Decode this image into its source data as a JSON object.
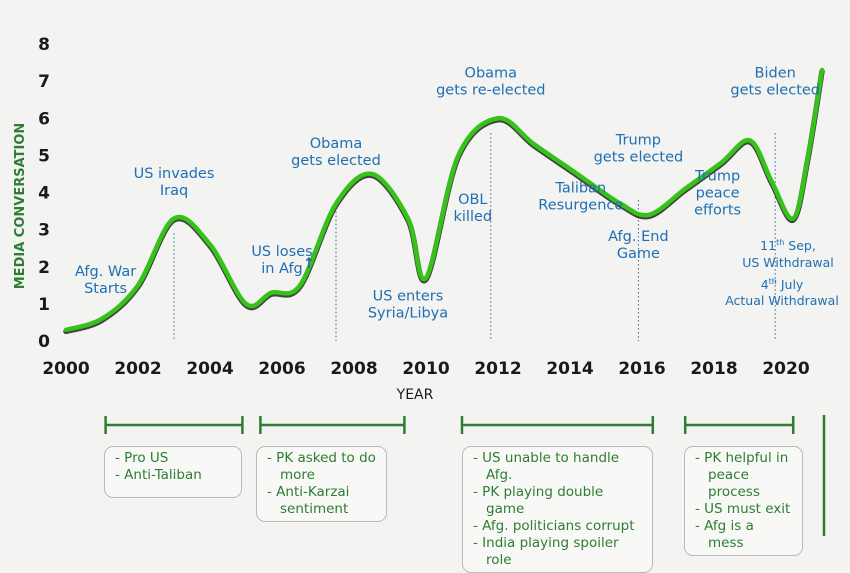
{
  "chart_data": {
    "type": "line",
    "title": "",
    "xlabel": "YEAR",
    "ylabel": "MEDIA CONVERSATION",
    "xlim": [
      2000,
      2021
    ],
    "ylim": [
      0,
      8
    ],
    "x_ticks": [
      "2000",
      "2002",
      "2004",
      "2006",
      "2008",
      "2010",
      "2012",
      "2014",
      "2016",
      "2018",
      "2020"
    ],
    "y_ticks": [
      "0",
      "1",
      "2",
      "3",
      "4",
      "5",
      "6",
      "7",
      "8"
    ],
    "grid": false,
    "series": [
      {
        "color": "#35c31a",
        "x": [
          2000,
          2001,
          2002,
          2003,
          2004,
          2005,
          2005.7,
          2006.5,
          2007.5,
          2008.5,
          2009.5,
          2010,
          2010.9,
          2012,
          2013,
          2014.2,
          2015.4,
          2016.2,
          2017.2,
          2018.2,
          2019,
          2019.6,
          2020.2,
          2020.6,
          2021
        ],
        "y": [
          0.3,
          0.6,
          1.5,
          3.3,
          2.6,
          1.0,
          1.3,
          1.5,
          3.7,
          4.5,
          3.3,
          1.7,
          5.0,
          6.0,
          5.3,
          4.5,
          3.7,
          3.4,
          4.1,
          4.8,
          5.4,
          4.3,
          3.3,
          4.9,
          7.3
        ]
      }
    ],
    "events": [
      {
        "label_lines": [
          "Afg. War",
          "Starts"
        ],
        "x": 2001.1,
        "y": 1.65,
        "marker": false
      },
      {
        "label_lines": [
          "US invades",
          "Iraq"
        ],
        "x": 2003,
        "y": 4.3,
        "marker": true
      },
      {
        "label_lines": [
          "US loses",
          "in Afg"
        ],
        "x": 2006,
        "y": 2.2,
        "marker": false
      },
      {
        "label_lines": [
          "Obama",
          "gets elected"
        ],
        "x": 2007.5,
        "y": 5.1,
        "marker": true
      },
      {
        "label_lines": [
          "US enters",
          "Syria/Libya"
        ],
        "x": 2009.5,
        "y": 1.0,
        "marker": false
      },
      {
        "label_lines": [
          "OBL",
          "killed"
        ],
        "x": 2011.3,
        "y": 3.6,
        "marker": false
      },
      {
        "label_lines": [
          "Obama",
          "gets re-elected"
        ],
        "x": 2011.8,
        "y": 7.0,
        "marker": true
      },
      {
        "label_lines": [
          "Taliban",
          "Resurgence"
        ],
        "x": 2014.3,
        "y": 3.9,
        "marker": false
      },
      {
        "label_lines": [
          "Trump",
          "gets elected"
        ],
        "x": 2015.9,
        "y": 5.2,
        "marker": true
      },
      {
        "label_lines": [
          "Afg. End",
          "Game"
        ],
        "x": 2015.9,
        "y": 2.6,
        "marker": false
      },
      {
        "label_lines": [
          "Trump",
          "peace",
          "efforts"
        ],
        "x": 2018.1,
        "y": 4.0,
        "marker": false
      },
      {
        "label_lines": [
          "Biden",
          "gets elected"
        ],
        "x": 2019.7,
        "y": 7.0,
        "marker": true
      }
    ],
    "arrow_label": "↑",
    "withdrawal_note": {
      "line1_sup": "th",
      "line1_day": "11",
      "line1_rest": " Sep,",
      "line2": "US Withdrawal",
      "line3_sup": "th",
      "line3_day": "4",
      "line3_rest": " July",
      "line4": "Actual Withdrawal"
    },
    "periods": [
      {
        "x_start": 2001.1,
        "x_end": 2004.9,
        "notes": [
          "Pro US",
          "Anti-Taliban"
        ]
      },
      {
        "x_start": 2005.4,
        "x_end": 2009.4,
        "notes": [
          "PK asked to do more",
          "Anti-Karzai sentiment"
        ]
      },
      {
        "x_start": 2011.0,
        "x_end": 2016.3,
        "notes": [
          "US unable to handle Afg.",
          "PK playing double game",
          "Afg. politicians corrupt",
          "India playing spoiler role"
        ]
      },
      {
        "x_start": 2017.2,
        "x_end": 2020.2,
        "notes": [
          "PK helpful in peace process",
          "US must exit",
          "Afg is a mess"
        ]
      }
    ]
  }
}
